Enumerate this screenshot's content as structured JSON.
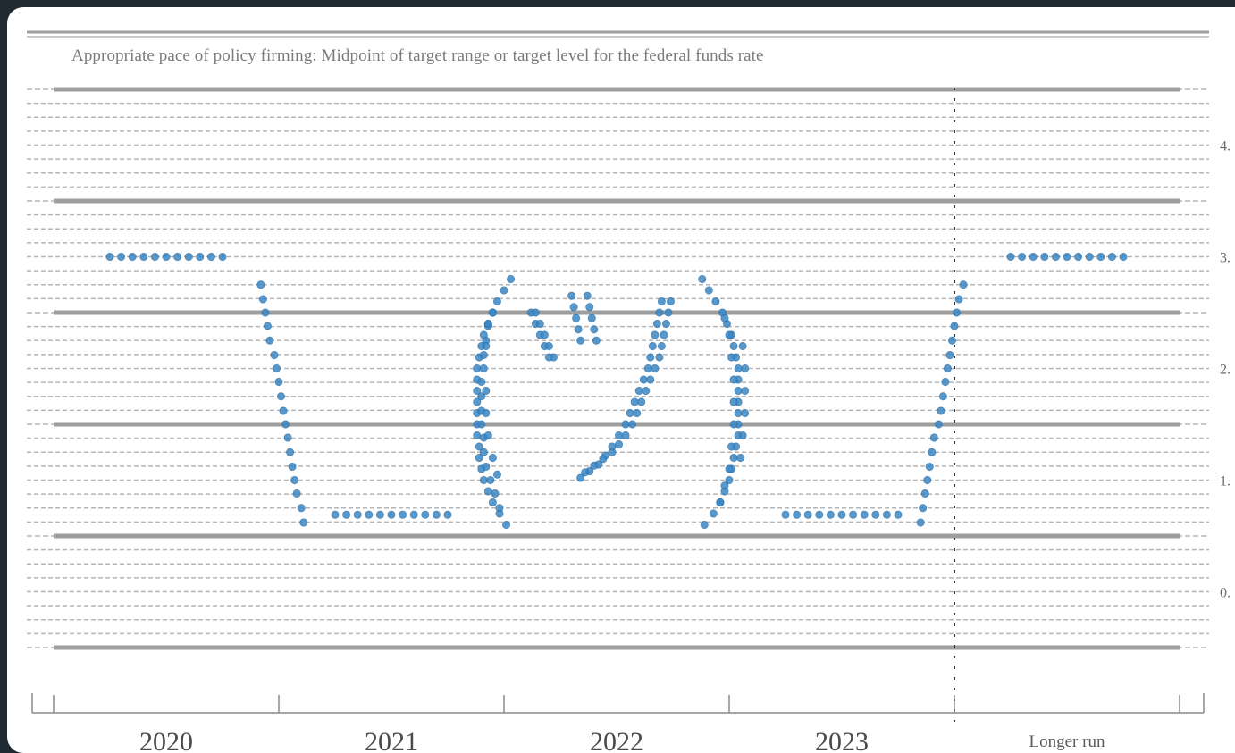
{
  "chart_data": {
    "type": "scatter",
    "title": "Appropriate pace of policy firming: Midpoint of target range or target level for the federal funds rate",
    "categories": [
      "2020",
      "2021",
      "2022",
      "2023",
      "Longer run"
    ],
    "ytick_labels": [
      "",
      "4.",
      "",
      "3.",
      "",
      "2.",
      "",
      "1.",
      "",
      "0.",
      ""
    ],
    "ylim": [
      0,
      5
    ],
    "y_major_step": 1.0,
    "y_minor_step": 0.125,
    "grid": true,
    "series": [
      {
        "values": [
          {
            "x": 0.25,
            "y": 3.5
          },
          {
            "x": 0.3,
            "y": 3.5
          },
          {
            "x": 0.35,
            "y": 3.5
          },
          {
            "x": 0.4,
            "y": 3.5
          },
          {
            "x": 0.45,
            "y": 3.5
          },
          {
            "x": 0.5,
            "y": 3.5
          },
          {
            "x": 0.55,
            "y": 3.5
          },
          {
            "x": 0.6,
            "y": 3.5
          },
          {
            "x": 0.65,
            "y": 3.5
          },
          {
            "x": 0.7,
            "y": 3.5
          },
          {
            "x": 0.75,
            "y": 3.5
          },
          {
            "x": 0.92,
            "y": 3.25
          },
          {
            "x": 0.93,
            "y": 3.12
          },
          {
            "x": 0.94,
            "y": 3.0
          },
          {
            "x": 0.95,
            "y": 2.88
          },
          {
            "x": 0.96,
            "y": 2.75
          },
          {
            "x": 0.98,
            "y": 2.62
          },
          {
            "x": 0.99,
            "y": 2.5
          },
          {
            "x": 1.0,
            "y": 2.38
          },
          {
            "x": 1.01,
            "y": 2.25
          },
          {
            "x": 1.02,
            "y": 2.12
          },
          {
            "x": 1.03,
            "y": 2.0
          },
          {
            "x": 1.04,
            "y": 1.88
          },
          {
            "x": 1.05,
            "y": 1.75
          },
          {
            "x": 1.06,
            "y": 1.62
          },
          {
            "x": 1.07,
            "y": 1.5
          },
          {
            "x": 1.08,
            "y": 1.38
          },
          {
            "x": 1.1,
            "y": 1.25
          },
          {
            "x": 1.11,
            "y": 1.12
          },
          {
            "x": 1.25,
            "y": 1.19
          },
          {
            "x": 1.3,
            "y": 1.19
          },
          {
            "x": 1.35,
            "y": 1.19
          },
          {
            "x": 1.4,
            "y": 1.19
          },
          {
            "x": 1.45,
            "y": 1.19
          },
          {
            "x": 1.5,
            "y": 1.19
          },
          {
            "x": 1.55,
            "y": 1.19
          },
          {
            "x": 1.6,
            "y": 1.19
          },
          {
            "x": 1.65,
            "y": 1.19
          },
          {
            "x": 1.7,
            "y": 1.19
          },
          {
            "x": 1.75,
            "y": 1.19
          },
          {
            "x": 2.03,
            "y": 3.3
          },
          {
            "x": 2.0,
            "y": 3.2
          },
          {
            "x": 1.97,
            "y": 3.1
          },
          {
            "x": 1.95,
            "y": 3.0
          },
          {
            "x": 1.93,
            "y": 2.9
          },
          {
            "x": 1.91,
            "y": 2.8
          },
          {
            "x": 1.9,
            "y": 2.7
          },
          {
            "x": 1.89,
            "y": 2.6
          },
          {
            "x": 1.88,
            "y": 2.5
          },
          {
            "x": 1.88,
            "y": 2.4
          },
          {
            "x": 1.88,
            "y": 2.3
          },
          {
            "x": 1.88,
            "y": 2.2
          },
          {
            "x": 1.88,
            "y": 2.1
          },
          {
            "x": 1.88,
            "y": 2.0
          },
          {
            "x": 1.88,
            "y": 1.9
          },
          {
            "x": 1.89,
            "y": 1.8
          },
          {
            "x": 1.89,
            "y": 1.7
          },
          {
            "x": 1.9,
            "y": 1.6
          },
          {
            "x": 1.91,
            "y": 1.5
          },
          {
            "x": 1.93,
            "y": 1.4
          },
          {
            "x": 1.95,
            "y": 1.3
          },
          {
            "x": 1.98,
            "y": 1.2
          },
          {
            "x": 2.01,
            "y": 1.1
          },
          {
            "x": 1.95,
            "y": 3.0
          },
          {
            "x": 1.93,
            "y": 2.88
          },
          {
            "x": 1.92,
            "y": 2.75
          },
          {
            "x": 1.91,
            "y": 2.62
          },
          {
            "x": 1.91,
            "y": 2.5
          },
          {
            "x": 1.9,
            "y": 2.38
          },
          {
            "x": 1.9,
            "y": 2.25
          },
          {
            "x": 1.9,
            "y": 2.12
          },
          {
            "x": 1.9,
            "y": 2.0
          },
          {
            "x": 1.91,
            "y": 1.88
          },
          {
            "x": 1.91,
            "y": 1.75
          },
          {
            "x": 1.92,
            "y": 1.62
          },
          {
            "x": 1.94,
            "y": 1.5
          },
          {
            "x": 1.96,
            "y": 1.38
          },
          {
            "x": 1.98,
            "y": 1.25
          },
          {
            "x": 1.93,
            "y": 2.9
          },
          {
            "x": 1.92,
            "y": 2.7
          },
          {
            "x": 1.92,
            "y": 2.3
          },
          {
            "x": 1.92,
            "y": 2.1
          },
          {
            "x": 1.93,
            "y": 1.9
          },
          {
            "x": 1.95,
            "y": 1.7
          },
          {
            "x": 1.97,
            "y": 1.55
          },
          {
            "x": 2.12,
            "y": 3.0
          },
          {
            "x": 2.14,
            "y": 2.9
          },
          {
            "x": 2.16,
            "y": 2.8
          },
          {
            "x": 2.18,
            "y": 2.7
          },
          {
            "x": 2.2,
            "y": 2.6
          },
          {
            "x": 2.14,
            "y": 3.0
          },
          {
            "x": 2.16,
            "y": 2.9
          },
          {
            "x": 2.18,
            "y": 2.8
          },
          {
            "x": 2.2,
            "y": 2.7
          },
          {
            "x": 2.22,
            "y": 2.6
          },
          {
            "x": 2.3,
            "y": 3.15
          },
          {
            "x": 2.31,
            "y": 3.05
          },
          {
            "x": 2.32,
            "y": 2.95
          },
          {
            "x": 2.33,
            "y": 2.85
          },
          {
            "x": 2.34,
            "y": 2.75
          },
          {
            "x": 2.37,
            "y": 3.15
          },
          {
            "x": 2.38,
            "y": 3.05
          },
          {
            "x": 2.39,
            "y": 2.95
          },
          {
            "x": 2.4,
            "y": 2.85
          },
          {
            "x": 2.41,
            "y": 2.75
          },
          {
            "x": 2.7,
            "y": 3.1
          },
          {
            "x": 2.69,
            "y": 3.0
          },
          {
            "x": 2.68,
            "y": 2.9
          },
          {
            "x": 2.67,
            "y": 2.8
          },
          {
            "x": 2.66,
            "y": 2.7
          },
          {
            "x": 2.65,
            "y": 2.6
          },
          {
            "x": 2.64,
            "y": 2.5
          },
          {
            "x": 2.62,
            "y": 2.4
          },
          {
            "x": 2.6,
            "y": 2.3
          },
          {
            "x": 2.58,
            "y": 2.2
          },
          {
            "x": 2.56,
            "y": 2.1
          },
          {
            "x": 2.54,
            "y": 2.0
          },
          {
            "x": 2.51,
            "y": 1.9
          },
          {
            "x": 2.48,
            "y": 1.8
          },
          {
            "x": 2.45,
            "y": 1.72
          },
          {
            "x": 2.42,
            "y": 1.64
          },
          {
            "x": 2.38,
            "y": 1.58
          },
          {
            "x": 2.34,
            "y": 1.52
          },
          {
            "x": 2.74,
            "y": 3.1
          },
          {
            "x": 2.73,
            "y": 3.0
          },
          {
            "x": 2.72,
            "y": 2.9
          },
          {
            "x": 2.71,
            "y": 2.8
          },
          {
            "x": 2.7,
            "y": 2.7
          },
          {
            "x": 2.69,
            "y": 2.6
          },
          {
            "x": 2.67,
            "y": 2.5
          },
          {
            "x": 2.65,
            "y": 2.4
          },
          {
            "x": 2.63,
            "y": 2.3
          },
          {
            "x": 2.61,
            "y": 2.2
          },
          {
            "x": 2.59,
            "y": 2.1
          },
          {
            "x": 2.57,
            "y": 2.0
          },
          {
            "x": 2.54,
            "y": 1.9
          },
          {
            "x": 2.51,
            "y": 1.82
          },
          {
            "x": 2.48,
            "y": 1.75
          },
          {
            "x": 2.44,
            "y": 1.69
          },
          {
            "x": 2.4,
            "y": 1.63
          },
          {
            "x": 2.36,
            "y": 1.57
          },
          {
            "x": 2.88,
            "y": 3.3
          },
          {
            "x": 2.91,
            "y": 3.2
          },
          {
            "x": 2.94,
            "y": 3.1
          },
          {
            "x": 2.97,
            "y": 3.0
          },
          {
            "x": 2.99,
            "y": 2.9
          },
          {
            "x": 3.01,
            "y": 2.8
          },
          {
            "x": 3.02,
            "y": 2.7
          },
          {
            "x": 3.03,
            "y": 2.6
          },
          {
            "x": 3.04,
            "y": 2.5
          },
          {
            "x": 3.04,
            "y": 2.4
          },
          {
            "x": 3.04,
            "y": 2.3
          },
          {
            "x": 3.04,
            "y": 2.2
          },
          {
            "x": 3.04,
            "y": 2.1
          },
          {
            "x": 3.04,
            "y": 2.0
          },
          {
            "x": 3.04,
            "y": 1.9
          },
          {
            "x": 3.03,
            "y": 1.8
          },
          {
            "x": 3.02,
            "y": 1.7
          },
          {
            "x": 3.01,
            "y": 1.6
          },
          {
            "x": 3.0,
            "y": 1.5
          },
          {
            "x": 2.98,
            "y": 1.4
          },
          {
            "x": 2.96,
            "y": 1.3
          },
          {
            "x": 2.93,
            "y": 1.2
          },
          {
            "x": 2.89,
            "y": 1.1
          },
          {
            "x": 2.98,
            "y": 2.95
          },
          {
            "x": 3.0,
            "y": 2.8
          },
          {
            "x": 3.01,
            "y": 2.6
          },
          {
            "x": 3.02,
            "y": 2.4
          },
          {
            "x": 3.02,
            "y": 2.2
          },
          {
            "x": 3.02,
            "y": 2.0
          },
          {
            "x": 3.01,
            "y": 1.8
          },
          {
            "x": 3.0,
            "y": 1.6
          },
          {
            "x": 2.98,
            "y": 1.45
          },
          {
            "x": 2.96,
            "y": 1.3
          },
          {
            "x": 3.06,
            "y": 2.7
          },
          {
            "x": 3.07,
            "y": 2.5
          },
          {
            "x": 3.07,
            "y": 2.3
          },
          {
            "x": 3.07,
            "y": 2.1
          },
          {
            "x": 3.06,
            "y": 1.9
          },
          {
            "x": 3.05,
            "y": 1.7
          },
          {
            "x": 3.25,
            "y": 1.19
          },
          {
            "x": 3.3,
            "y": 1.19
          },
          {
            "x": 3.35,
            "y": 1.19
          },
          {
            "x": 3.4,
            "y": 1.19
          },
          {
            "x": 3.45,
            "y": 1.19
          },
          {
            "x": 3.5,
            "y": 1.19
          },
          {
            "x": 3.55,
            "y": 1.19
          },
          {
            "x": 3.6,
            "y": 1.19
          },
          {
            "x": 3.65,
            "y": 1.19
          },
          {
            "x": 3.7,
            "y": 1.19
          },
          {
            "x": 3.75,
            "y": 1.19
          },
          {
            "x": 3.85,
            "y": 1.12
          },
          {
            "x": 3.86,
            "y": 1.25
          },
          {
            "x": 3.87,
            "y": 1.38
          },
          {
            "x": 3.88,
            "y": 1.5
          },
          {
            "x": 3.89,
            "y": 1.62
          },
          {
            "x": 3.9,
            "y": 1.75
          },
          {
            "x": 3.91,
            "y": 1.88
          },
          {
            "x": 3.93,
            "y": 2.0
          },
          {
            "x": 3.94,
            "y": 2.12
          },
          {
            "x": 3.95,
            "y": 2.25
          },
          {
            "x": 3.96,
            "y": 2.38
          },
          {
            "x": 3.97,
            "y": 2.5
          },
          {
            "x": 3.98,
            "y": 2.62
          },
          {
            "x": 3.99,
            "y": 2.75
          },
          {
            "x": 4.0,
            "y": 2.88
          },
          {
            "x": 4.01,
            "y": 3.0
          },
          {
            "x": 4.02,
            "y": 3.12
          },
          {
            "x": 4.04,
            "y": 3.25
          },
          {
            "x": 4.25,
            "y": 3.5
          },
          {
            "x": 4.3,
            "y": 3.5
          },
          {
            "x": 4.35,
            "y": 3.5
          },
          {
            "x": 4.4,
            "y": 3.5
          },
          {
            "x": 4.45,
            "y": 3.5
          },
          {
            "x": 4.5,
            "y": 3.5
          },
          {
            "x": 4.55,
            "y": 3.5
          },
          {
            "x": 4.6,
            "y": 3.5
          },
          {
            "x": 4.65,
            "y": 3.5
          },
          {
            "x": 4.7,
            "y": 3.5
          },
          {
            "x": 4.75,
            "y": 3.5
          }
        ]
      }
    ],
    "colors": {
      "dot": "#3a86c4",
      "grid_major": "#9e9e9e",
      "grid_minor": "#b5b5b5",
      "divider": "#333333",
      "background": "#ffffff",
      "frame": "#1f2a33"
    }
  }
}
